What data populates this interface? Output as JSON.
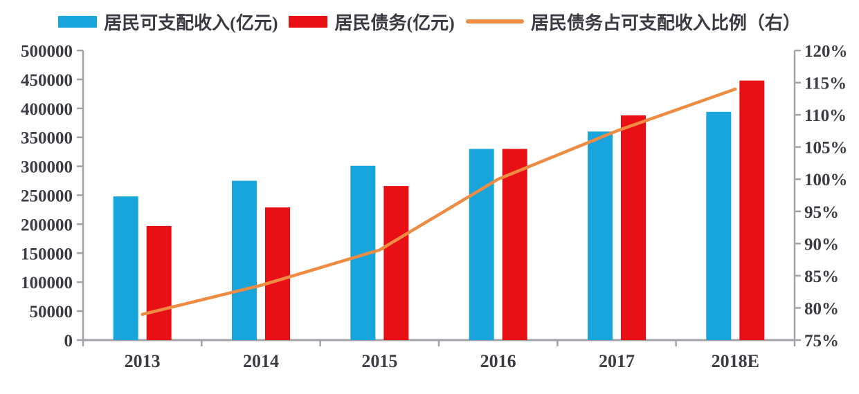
{
  "chart_data": {
    "type": "bar",
    "subtype": "grouped-bars-with-line-overlay",
    "categories": [
      "2013",
      "2014",
      "2015",
      "2016",
      "2017",
      "2018E"
    ],
    "series": [
      {
        "name": "居民可支配收入(亿元)",
        "type": "bar",
        "axis": "left",
        "color": "#18a5dc",
        "values": [
          248000,
          275000,
          301000,
          330000,
          360000,
          394000
        ]
      },
      {
        "name": "居民债务(亿元)",
        "type": "bar",
        "axis": "left",
        "color": "#e81014",
        "values": [
          197000,
          229000,
          266000,
          330000,
          388000,
          448000
        ]
      },
      {
        "name": "居民债务占可支配收入比例（右）",
        "type": "line",
        "axis": "right",
        "color": "#ef8c44",
        "values": [
          79,
          83.5,
          89,
          100,
          107.5,
          114
        ]
      }
    ],
    "left_axis": {
      "min": 0,
      "max": 500000,
      "step": 50000,
      "tick_labels": [
        "0",
        "50000",
        "100000",
        "150000",
        "200000",
        "250000",
        "300000",
        "350000",
        "400000",
        "450000",
        "500000"
      ]
    },
    "right_axis": {
      "min": 75,
      "max": 120,
      "step": 5,
      "suffix": "%",
      "tick_labels": [
        "75%",
        "80%",
        "85%",
        "90%",
        "95%",
        "100%",
        "105%",
        "110%",
        "115%",
        "120%"
      ]
    },
    "grid": false,
    "legend_position": "top"
  },
  "colors": {
    "axis": "#a2a2a8",
    "tick_text": "#3c3c44",
    "background": "#ffffff"
  }
}
